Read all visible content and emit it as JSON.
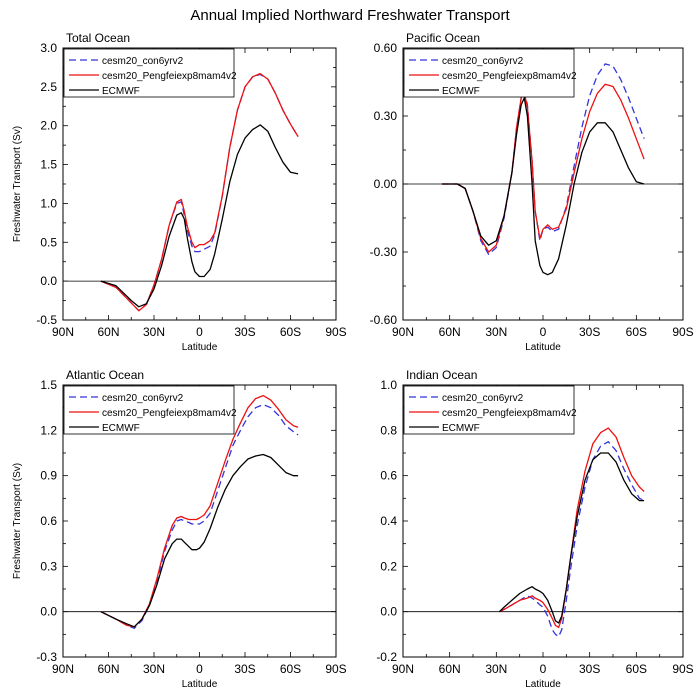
{
  "figure": {
    "title": "Annual Implied Northward Freshwater Transport"
  },
  "legend_entries": [
    {
      "name": "cesm20_con6yrv2",
      "color": "#3333dd",
      "dash": "dashed"
    },
    {
      "name": "cesm20_Pengfeiexp8mam4v2",
      "color": "#ee1111",
      "dash": "solid"
    },
    {
      "name": "ECMWF",
      "color": "#000000",
      "dash": "solid"
    }
  ],
  "chart_data": [
    {
      "type": "line",
      "title": "Total Ocean",
      "xlabel": "Latitude",
      "ylabel": "Freshwater Transport (Sv)",
      "xlim": [
        -90,
        90
      ],
      "ylim": [
        -0.5,
        3.0
      ],
      "xticks": [
        -90,
        -60,
        -30,
        0,
        30,
        60,
        90
      ],
      "xtick_labels": [
        "90N",
        "60N",
        "30N",
        "0",
        "30S",
        "60S",
        "90S"
      ],
      "yticks": [
        -0.5,
        0.0,
        0.5,
        1.0,
        1.5,
        2.0,
        2.5,
        3.0
      ],
      "ytick_labels": [
        "-0.5",
        "0.0",
        "0.5",
        "1.0",
        "1.5",
        "2.0",
        "2.5",
        "3.0"
      ],
      "series": [
        {
          "name": "cesm20_con6yrv2",
          "x": [
            -65,
            -55,
            -45,
            -40,
            -35,
            -30,
            -25,
            -20,
            -15,
            -12,
            -10,
            -8,
            -5,
            -3,
            0,
            3,
            7,
            10,
            15,
            20,
            25,
            30,
            35,
            40,
            45,
            50,
            55,
            60,
            65
          ],
          "y": [
            0,
            -0.08,
            -0.28,
            -0.38,
            -0.3,
            -0.05,
            0.28,
            0.72,
            1.0,
            1.02,
            0.85,
            0.65,
            0.45,
            0.38,
            0.38,
            0.41,
            0.45,
            0.6,
            1.1,
            1.72,
            2.2,
            2.5,
            2.63,
            2.66,
            2.6,
            2.42,
            2.2,
            2.02,
            1.86
          ]
        },
        {
          "name": "cesm20_Pengfeiexp8mam4v2",
          "x": [
            -65,
            -55,
            -45,
            -40,
            -35,
            -30,
            -25,
            -20,
            -15,
            -12,
            -10,
            -8,
            -5,
            -3,
            0,
            3,
            7,
            10,
            15,
            20,
            25,
            30,
            35,
            40,
            45,
            50,
            55,
            60,
            65
          ],
          "y": [
            0,
            -0.08,
            -0.28,
            -0.38,
            -0.3,
            -0.05,
            0.28,
            0.72,
            1.02,
            1.05,
            0.9,
            0.7,
            0.5,
            0.43,
            0.47,
            0.47,
            0.52,
            0.62,
            1.1,
            1.72,
            2.2,
            2.5,
            2.63,
            2.67,
            2.6,
            2.42,
            2.2,
            2.02,
            1.86
          ]
        },
        {
          "name": "ECMWF",
          "x": [
            -65,
            -55,
            -45,
            -40,
            -35,
            -30,
            -25,
            -20,
            -15,
            -12,
            -10,
            -8,
            -5,
            -3,
            0,
            3,
            7,
            10,
            15,
            20,
            25,
            30,
            35,
            40,
            45,
            50,
            55,
            60,
            65
          ],
          "y": [
            0,
            -0.06,
            -0.25,
            -0.33,
            -0.29,
            -0.1,
            0.2,
            0.58,
            0.85,
            0.88,
            0.8,
            0.55,
            0.25,
            0.12,
            0.06,
            0.06,
            0.15,
            0.35,
            0.8,
            1.28,
            1.63,
            1.84,
            1.95,
            2.01,
            1.93,
            1.72,
            1.53,
            1.4,
            1.38
          ]
        }
      ]
    },
    {
      "type": "line",
      "title": "Pacific Ocean",
      "xlabel": "Latitude",
      "ylabel": "",
      "xlim": [
        -90,
        90
      ],
      "ylim": [
        -0.6,
        0.6
      ],
      "xticks": [
        -90,
        -60,
        -30,
        0,
        30,
        60,
        90
      ],
      "xtick_labels": [
        "90N",
        "60N",
        "30N",
        "0",
        "30S",
        "60S",
        "90S"
      ],
      "yticks": [
        -0.6,
        -0.3,
        0.0,
        0.3,
        0.6
      ],
      "ytick_labels": [
        "-0.60",
        "-0.30",
        "0.00",
        "0.30",
        "0.60"
      ],
      "series": [
        {
          "name": "cesm20_con6yrv2",
          "x": [
            -65,
            -55,
            -50,
            -45,
            -40,
            -35,
            -30,
            -25,
            -20,
            -17,
            -14,
            -12,
            -10,
            -7,
            -5,
            -2,
            0,
            3,
            6,
            10,
            15,
            20,
            25,
            30,
            35,
            40,
            45,
            50,
            55,
            60,
            65
          ],
          "y": [
            0,
            0,
            -0.02,
            -0.12,
            -0.25,
            -0.31,
            -0.28,
            -0.15,
            0.05,
            0.25,
            0.38,
            0.41,
            0.35,
            0.1,
            -0.12,
            -0.25,
            -0.2,
            -0.19,
            -0.21,
            -0.2,
            -0.1,
            0.08,
            0.25,
            0.39,
            0.48,
            0.53,
            0.52,
            0.46,
            0.38,
            0.29,
            0.2
          ]
        },
        {
          "name": "cesm20_Pengfeiexp8mam4v2",
          "x": [
            -65,
            -55,
            -50,
            -45,
            -40,
            -35,
            -30,
            -25,
            -20,
            -17,
            -14,
            -12,
            -10,
            -7,
            -5,
            -2,
            0,
            3,
            6,
            10,
            15,
            20,
            25,
            30,
            35,
            40,
            45,
            50,
            55,
            60,
            65
          ],
          "y": [
            0,
            0,
            -0.02,
            -0.12,
            -0.24,
            -0.3,
            -0.27,
            -0.14,
            0.05,
            0.25,
            0.38,
            0.4,
            0.34,
            0.1,
            -0.12,
            -0.24,
            -0.2,
            -0.18,
            -0.2,
            -0.19,
            -0.11,
            0.05,
            0.2,
            0.32,
            0.4,
            0.44,
            0.43,
            0.37,
            0.29,
            0.2,
            0.11
          ]
        },
        {
          "name": "ECMWF",
          "x": [
            -65,
            -55,
            -50,
            -45,
            -40,
            -35,
            -30,
            -25,
            -20,
            -17,
            -14,
            -12,
            -10,
            -7,
            -5,
            -2,
            0,
            3,
            6,
            10,
            15,
            20,
            25,
            30,
            35,
            40,
            45,
            50,
            55,
            60,
            65
          ],
          "y": [
            0,
            0,
            -0.02,
            -0.12,
            -0.23,
            -0.27,
            -0.25,
            -0.14,
            0.05,
            0.22,
            0.35,
            0.38,
            0.3,
            0.0,
            -0.25,
            -0.36,
            -0.39,
            -0.4,
            -0.39,
            -0.33,
            -0.18,
            0.0,
            0.14,
            0.23,
            0.27,
            0.27,
            0.23,
            0.15,
            0.07,
            0.01,
            0.0
          ]
        }
      ]
    },
    {
      "type": "line",
      "title": "Atlantic Ocean",
      "xlabel": "Latitude",
      "ylabel": "Freshwater Transport (Sv)",
      "xlim": [
        -90,
        90
      ],
      "ylim": [
        -0.3,
        1.5
      ],
      "xticks": [
        -90,
        -60,
        -30,
        0,
        30,
        60,
        90
      ],
      "xtick_labels": [
        "90N",
        "60N",
        "30N",
        "0",
        "30S",
        "60S",
        "90S"
      ],
      "yticks": [
        -0.3,
        0.0,
        0.3,
        0.6,
        0.9,
        1.2,
        1.5
      ],
      "ytick_labels": [
        "-0.3",
        "0.0",
        "0.3",
        "0.6",
        "0.9",
        "1.2",
        "1.5"
      ],
      "series": [
        {
          "name": "cesm20_con6yrv2",
          "x": [
            -65,
            -55,
            -48,
            -43,
            -38,
            -33,
            -28,
            -23,
            -18,
            -15,
            -12,
            -10,
            -7,
            -5,
            -2,
            0,
            3,
            7,
            12,
            17,
            22,
            27,
            32,
            37,
            42,
            47,
            52,
            57,
            62,
            65
          ],
          "y": [
            0,
            -0.05,
            -0.09,
            -0.11,
            -0.06,
            0.04,
            0.2,
            0.4,
            0.54,
            0.6,
            0.61,
            0.6,
            0.59,
            0.58,
            0.58,
            0.58,
            0.6,
            0.65,
            0.8,
            0.95,
            1.1,
            1.2,
            1.29,
            1.35,
            1.37,
            1.35,
            1.3,
            1.23,
            1.19,
            1.17
          ]
        },
        {
          "name": "cesm20_Pengfeiexp8mam4v2",
          "x": [
            -65,
            -55,
            -48,
            -43,
            -38,
            -33,
            -28,
            -23,
            -18,
            -15,
            -12,
            -10,
            -7,
            -5,
            -2,
            0,
            3,
            7,
            12,
            17,
            22,
            27,
            32,
            37,
            42,
            47,
            52,
            57,
            62,
            65
          ],
          "y": [
            0,
            -0.05,
            -0.09,
            -0.1,
            -0.05,
            0.05,
            0.22,
            0.42,
            0.57,
            0.62,
            0.63,
            0.62,
            0.61,
            0.61,
            0.61,
            0.62,
            0.64,
            0.7,
            0.85,
            1.0,
            1.14,
            1.25,
            1.35,
            1.41,
            1.43,
            1.4,
            1.34,
            1.27,
            1.23,
            1.22
          ]
        },
        {
          "name": "ECMWF",
          "x": [
            -65,
            -55,
            -48,
            -43,
            -38,
            -33,
            -28,
            -23,
            -18,
            -15,
            -12,
            -10,
            -7,
            -5,
            -2,
            0,
            3,
            7,
            12,
            17,
            22,
            27,
            32,
            37,
            42,
            47,
            52,
            57,
            62,
            65
          ],
          "y": [
            0,
            -0.05,
            -0.08,
            -0.1,
            -0.05,
            0.04,
            0.18,
            0.35,
            0.45,
            0.48,
            0.48,
            0.46,
            0.43,
            0.41,
            0.41,
            0.42,
            0.46,
            0.55,
            0.69,
            0.81,
            0.9,
            0.96,
            1.01,
            1.03,
            1.04,
            1.02,
            0.97,
            0.92,
            0.9,
            0.9
          ]
        }
      ]
    },
    {
      "type": "line",
      "title": "Indian Ocean",
      "xlabel": "Latitude",
      "ylabel": "",
      "xlim": [
        -90,
        90
      ],
      "ylim": [
        -0.2,
        1.0
      ],
      "xticks": [
        -90,
        -60,
        -30,
        0,
        30,
        60,
        90
      ],
      "xtick_labels": [
        "90N",
        "60N",
        "30N",
        "0",
        "30S",
        "60S",
        "90S"
      ],
      "yticks": [
        -0.2,
        0.0,
        0.2,
        0.4,
        0.6,
        0.8,
        1.0
      ],
      "ytick_labels": [
        "-0.2",
        "0.0",
        "0.2",
        "0.4",
        "0.6",
        "0.8",
        "1.0"
      ],
      "series": [
        {
          "name": "cesm20_con6yrv2",
          "x": [
            -28,
            -25,
            -20,
            -15,
            -10,
            -7,
            -5,
            -2,
            0,
            3,
            6,
            8,
            10,
            12,
            15,
            18,
            22,
            27,
            32,
            37,
            42,
            47,
            52,
            57,
            62,
            65
          ],
          "y": [
            0,
            0.01,
            0.03,
            0.05,
            0.07,
            0.06,
            0.05,
            0.03,
            0.02,
            -0.02,
            -0.08,
            -0.1,
            -0.11,
            -0.08,
            0.05,
            0.2,
            0.38,
            0.55,
            0.67,
            0.73,
            0.75,
            0.71,
            0.63,
            0.56,
            0.5,
            0.49
          ]
        },
        {
          "name": "cesm20_Pengfeiexp8mam4v2",
          "x": [
            -28,
            -25,
            -20,
            -15,
            -10,
            -7,
            -5,
            -2,
            0,
            3,
            6,
            8,
            10,
            12,
            15,
            18,
            22,
            27,
            32,
            37,
            42,
            47,
            52,
            57,
            62,
            65
          ],
          "y": [
            0,
            0.01,
            0.03,
            0.05,
            0.06,
            0.07,
            0.06,
            0.05,
            0.04,
            0.01,
            -0.03,
            -0.06,
            -0.07,
            -0.03,
            0.1,
            0.25,
            0.45,
            0.62,
            0.74,
            0.79,
            0.81,
            0.77,
            0.68,
            0.6,
            0.55,
            0.53
          ]
        },
        {
          "name": "ECMWF",
          "x": [
            -28,
            -25,
            -20,
            -15,
            -10,
            -7,
            -5,
            -2,
            0,
            3,
            6,
            8,
            10,
            12,
            15,
            18,
            22,
            27,
            32,
            37,
            42,
            47,
            52,
            57,
            62,
            65
          ],
          "y": [
            0,
            0.02,
            0.05,
            0.08,
            0.1,
            0.11,
            0.1,
            0.09,
            0.08,
            0.05,
            0.0,
            -0.04,
            -0.05,
            -0.02,
            0.1,
            0.25,
            0.42,
            0.58,
            0.67,
            0.7,
            0.7,
            0.66,
            0.58,
            0.52,
            0.49,
            0.49
          ]
        }
      ]
    }
  ]
}
